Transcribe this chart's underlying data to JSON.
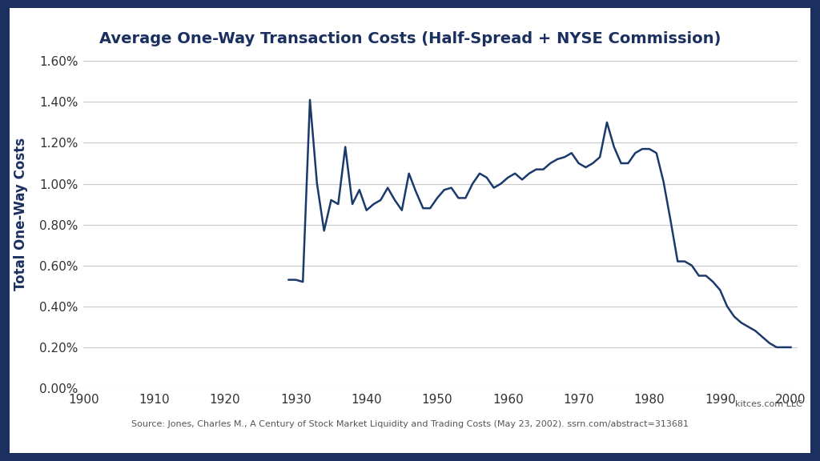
{
  "title": "Average One-Way Transaction Costs (Half-Spread + NYSE Commission)",
  "ylabel": "Total One-Way Costs",
  "source_text": "Source: Jones, Charles M., A Century of Stock Market Liquidity and Trading Costs (May 23, 2002). ssrn.com/abstract=313681",
  "attribution": "kitces.com LLC",
  "line_color": "#1b3a6b",
  "background_color": "#ffffff",
  "outer_bg_color": "#1b3060",
  "grid_color": "#c8c8c8",
  "title_color": "#1b3060",
  "text_color": "#333333",
  "xlim": [
    1900,
    2001
  ],
  "ylim": [
    0.0,
    0.017
  ],
  "xticks": [
    1900,
    1910,
    1920,
    1930,
    1940,
    1950,
    1960,
    1970,
    1980,
    1990,
    2000
  ],
  "yticks": [
    0.0,
    0.002,
    0.004,
    0.006,
    0.008,
    0.01,
    0.012,
    0.014,
    0.016
  ],
  "ytick_labels": [
    "0.00%",
    "0.20%",
    "0.40%",
    "0.60%",
    "0.80%",
    "1.00%",
    "1.20%",
    "1.40%",
    "1.60%"
  ],
  "years": [
    1929,
    1930,
    1931,
    1932,
    1933,
    1934,
    1935,
    1936,
    1937,
    1938,
    1939,
    1940,
    1941,
    1942,
    1943,
    1944,
    1945,
    1946,
    1947,
    1948,
    1949,
    1950,
    1951,
    1952,
    1953,
    1954,
    1955,
    1956,
    1957,
    1958,
    1959,
    1960,
    1961,
    1962,
    1963,
    1964,
    1965,
    1966,
    1967,
    1968,
    1969,
    1970,
    1971,
    1972,
    1973,
    1974,
    1975,
    1976,
    1977,
    1978,
    1979,
    1980,
    1981,
    1982,
    1983,
    1984,
    1985,
    1986,
    1987,
    1988,
    1989,
    1990,
    1991,
    1992,
    1993,
    1994,
    1995,
    1996,
    1997,
    1998,
    1999,
    2000
  ],
  "values": [
    0.0053,
    0.0053,
    0.0052,
    0.0141,
    0.01,
    0.0077,
    0.0092,
    0.009,
    0.0118,
    0.009,
    0.0097,
    0.0087,
    0.009,
    0.0092,
    0.0098,
    0.0092,
    0.0087,
    0.0105,
    0.0096,
    0.0088,
    0.0088,
    0.0093,
    0.0097,
    0.0098,
    0.0093,
    0.0093,
    0.01,
    0.0105,
    0.0103,
    0.0098,
    0.01,
    0.0103,
    0.0105,
    0.0102,
    0.0105,
    0.0107,
    0.0107,
    0.011,
    0.0112,
    0.0113,
    0.0115,
    0.011,
    0.0108,
    0.011,
    0.0113,
    0.013,
    0.0118,
    0.011,
    0.011,
    0.0115,
    0.0117,
    0.0117,
    0.0115,
    0.0101,
    0.0082,
    0.0062,
    0.0062,
    0.006,
    0.0055,
    0.0055,
    0.0052,
    0.0048,
    0.004,
    0.0035,
    0.0032,
    0.003,
    0.0028,
    0.0025,
    0.0022,
    0.002,
    0.002,
    0.002
  ]
}
